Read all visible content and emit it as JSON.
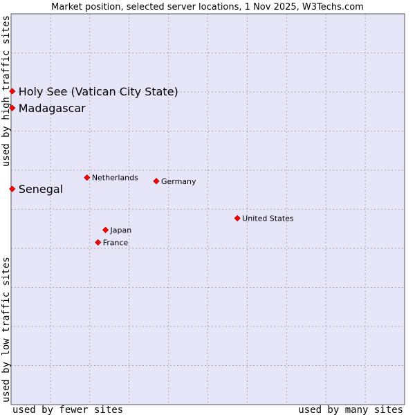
{
  "chart_data": {
    "type": "scatter",
    "title": "Market position, selected server locations, 1 Nov 2025, W3Techs.com",
    "xlabel_left": "used by fewer sites",
    "xlabel_right": "used by many sites",
    "ylabel_top": "used by high traffic sites",
    "ylabel_bottom": "used by low traffic sites",
    "xlim": [
      0,
      100
    ],
    "ylim": [
      0,
      100
    ],
    "grid": true,
    "marker_color": "#ff0000",
    "plot_background": "#e6e6f8",
    "grid_color": "#aaaaaa",
    "points": [
      {
        "label": "Holy See (Vatican City State)",
        "x": 0.3,
        "y": 80.2,
        "highlight": true
      },
      {
        "label": "Madagascar",
        "x": 0.3,
        "y": 75.9,
        "highlight": true
      },
      {
        "label": "Senegal",
        "x": 0.3,
        "y": 55.2,
        "highlight": true
      },
      {
        "label": "Netherlands",
        "x": 19.3,
        "y": 58.1,
        "highlight": false
      },
      {
        "label": "Germany",
        "x": 36.9,
        "y": 57.2,
        "highlight": false
      },
      {
        "label": "United States",
        "x": 57.5,
        "y": 47.7,
        "highlight": false
      },
      {
        "label": "Japan",
        "x": 24.0,
        "y": 44.7,
        "highlight": false
      },
      {
        "label": "France",
        "x": 22.1,
        "y": 41.5,
        "highlight": false
      }
    ]
  }
}
